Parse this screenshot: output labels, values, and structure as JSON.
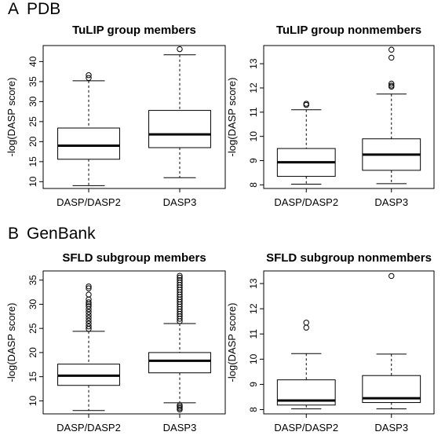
{
  "sections": [
    {
      "letter": "A",
      "name": "PDB"
    },
    {
      "letter": "B",
      "name": "GenBank"
    }
  ],
  "chart_data": [
    {
      "type": "boxplot",
      "title": "TuLIP group members",
      "ylabel": "-log(DASP score)",
      "categories": [
        "DASP/DASP2",
        "DASP3"
      ],
      "ylim": [
        8.3,
        44.0
      ],
      "yticks": [
        10,
        15,
        20,
        25,
        30,
        35,
        40
      ],
      "boxes": [
        {
          "whisker_low": 9.0,
          "q1": 15.6,
          "median": 19.0,
          "q3": 23.4,
          "whisker_high": 35.2,
          "outliers": [
            35.9,
            36.6
          ]
        },
        {
          "whisker_low": 11.0,
          "q1": 18.5,
          "median": 21.8,
          "q3": 27.8,
          "whisker_high": 41.7,
          "outliers": [
            43.1
          ]
        }
      ]
    },
    {
      "type": "boxplot",
      "title": "TuLIP group nonmembers",
      "ylabel": "-log(DASP score)",
      "categories": [
        "DASP/DASP2",
        "DASP3"
      ],
      "ylim": [
        7.85,
        13.75
      ],
      "yticks": [
        8,
        9,
        10,
        11,
        12,
        13
      ],
      "boxes": [
        {
          "whisker_low": 8.03,
          "q1": 8.35,
          "median": 8.93,
          "q3": 9.5,
          "whisker_high": 11.1,
          "outliers": [
            11.3,
            11.35
          ]
        },
        {
          "whisker_low": 8.05,
          "q1": 8.6,
          "median": 9.25,
          "q3": 9.9,
          "whisker_high": 11.75,
          "outliers": [
            12.05,
            12.1,
            12.18,
            13.25,
            13.58
          ]
        }
      ]
    },
    {
      "type": "boxplot",
      "title": "SFLD subgroup members",
      "ylabel": "-log(DASP score)",
      "categories": [
        "DASP/DASP2",
        "DASP3"
      ],
      "ylim": [
        7.3,
        36.9
      ],
      "yticks": [
        10,
        15,
        20,
        25,
        30,
        35
      ],
      "boxes": [
        {
          "whisker_low": 8.0,
          "q1": 13.2,
          "median": 15.2,
          "q3": 17.6,
          "whisker_high": 24.4,
          "outliers": [
            24.9,
            25.4,
            26.0,
            26.6,
            27.2,
            27.8,
            28.4,
            29.0,
            29.6,
            30.0,
            30.4,
            31.0,
            32.0,
            33.3,
            33.7
          ]
        },
        {
          "whisker_low": 9.6,
          "q1": 15.8,
          "median": 18.3,
          "q3": 20.0,
          "whisker_high": 26.0,
          "outliers": [
            26.5,
            27.0,
            27.5,
            28.0,
            28.5,
            29.0,
            29.5,
            30.0,
            30.5,
            31.0,
            31.5,
            32.0,
            32.5,
            33.0,
            33.5,
            34.0,
            34.5,
            35.0,
            35.5,
            35.9,
            8.2,
            8.5,
            8.8,
            9.1
          ]
        }
      ]
    },
    {
      "type": "boxplot",
      "title": "SFLD subgroup nonmembers",
      "ylabel": "-log(DASP score)",
      "categories": [
        "DASP/DASP2",
        "DASP3"
      ],
      "ylim": [
        7.83,
        13.5
      ],
      "yticks": [
        8,
        9,
        10,
        11,
        12,
        13
      ],
      "boxes": [
        {
          "whisker_low": 8.03,
          "q1": 8.18,
          "median": 8.36,
          "q3": 9.18,
          "whisker_high": 10.22,
          "outliers": [
            11.25,
            11.45
          ]
        },
        {
          "whisker_low": 8.03,
          "q1": 8.28,
          "median": 8.45,
          "q3": 9.35,
          "whisker_high": 10.2,
          "outliers": [
            13.3
          ]
        }
      ]
    }
  ]
}
